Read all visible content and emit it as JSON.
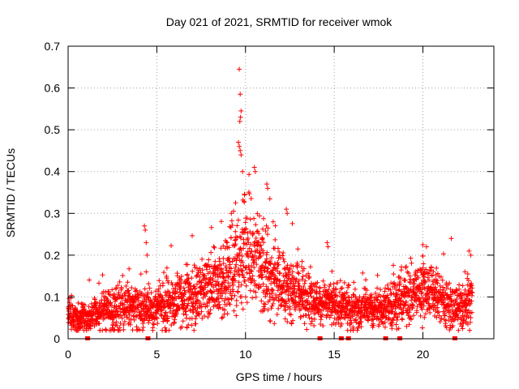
{
  "chart_data": {
    "type": "scatter",
    "title": "Day 021 of 2021, SRMTID for receiver wmok",
    "xlabel": "GPS time / hours",
    "ylabel": "SRMTID / TECUs",
    "xlim": [
      0,
      24
    ],
    "ylim": [
      0,
      0.7
    ],
    "x_ticks": [
      0,
      5,
      10,
      15,
      20
    ],
    "x_tick_labels": [
      "0",
      "5",
      "10",
      "15",
      "20"
    ],
    "y_ticks": [
      0,
      0.1,
      0.2,
      0.3,
      0.4,
      0.5,
      0.6,
      0.7
    ],
    "y_tick_labels": [
      "0",
      "0.1",
      "0.2",
      "0.3",
      "0.4",
      "0.5",
      "0.6",
      "0.7"
    ],
    "grid": true,
    "marker": "plus",
    "series_color": "#ff0000",
    "profile_hours": [
      0,
      0.5,
      1,
      1.5,
      2,
      2.5,
      3,
      3.5,
      4,
      4.5,
      5,
      5.5,
      6,
      6.5,
      7,
      7.5,
      8,
      8.5,
      9,
      9.5,
      10,
      10.5,
      11,
      11.5,
      12,
      12.5,
      13,
      13.5,
      14,
      14.5,
      15,
      15.5,
      16,
      16.5,
      17,
      17.5,
      18,
      18.5,
      19,
      19.5,
      20,
      20.5,
      21,
      21.5,
      22,
      22.5,
      22.8
    ],
    "profile_median": [
      0.06,
      0.05,
      0.05,
      0.06,
      0.07,
      0.07,
      0.07,
      0.08,
      0.07,
      0.07,
      0.08,
      0.08,
      0.09,
      0.09,
      0.1,
      0.11,
      0.12,
      0.13,
      0.15,
      0.18,
      0.22,
      0.2,
      0.17,
      0.14,
      0.13,
      0.12,
      0.11,
      0.1,
      0.09,
      0.09,
      0.08,
      0.08,
      0.07,
      0.07,
      0.07,
      0.07,
      0.08,
      0.09,
      0.1,
      0.11,
      0.12,
      0.11,
      0.09,
      0.08,
      0.07,
      0.08,
      0.1
    ],
    "profile_spread": [
      0.03,
      0.03,
      0.03,
      0.03,
      0.04,
      0.04,
      0.04,
      0.04,
      0.04,
      0.04,
      0.04,
      0.05,
      0.05,
      0.05,
      0.06,
      0.06,
      0.07,
      0.07,
      0.08,
      0.1,
      0.11,
      0.1,
      0.09,
      0.07,
      0.07,
      0.06,
      0.05,
      0.05,
      0.04,
      0.04,
      0.04,
      0.04,
      0.04,
      0.04,
      0.03,
      0.03,
      0.04,
      0.05,
      0.05,
      0.06,
      0.06,
      0.05,
      0.05,
      0.04,
      0.04,
      0.05,
      0.05
    ],
    "notable_points": [
      {
        "x": 4.3,
        "y": 0.27
      },
      {
        "x": 4.35,
        "y": 0.26
      },
      {
        "x": 4.4,
        "y": 0.23
      },
      {
        "x": 4.45,
        "y": 0.2
      },
      {
        "x": 4.4,
        "y": 0.16
      },
      {
        "x": 9.65,
        "y": 0.645
      },
      {
        "x": 9.7,
        "y": 0.585
      },
      {
        "x": 9.75,
        "y": 0.545
      },
      {
        "x": 9.72,
        "y": 0.53
      },
      {
        "x": 9.68,
        "y": 0.52
      },
      {
        "x": 9.6,
        "y": 0.47
      },
      {
        "x": 9.65,
        "y": 0.46
      },
      {
        "x": 9.7,
        "y": 0.45
      },
      {
        "x": 9.75,
        "y": 0.44
      },
      {
        "x": 10.5,
        "y": 0.41
      },
      {
        "x": 10.55,
        "y": 0.4
      },
      {
        "x": 11.2,
        "y": 0.37
      },
      {
        "x": 11.25,
        "y": 0.36
      },
      {
        "x": 12.3,
        "y": 0.31
      },
      {
        "x": 12.35,
        "y": 0.3
      },
      {
        "x": 14.6,
        "y": 0.23
      },
      {
        "x": 14.65,
        "y": 0.22
      },
      {
        "x": 20.0,
        "y": 0.225
      },
      {
        "x": 20.2,
        "y": 0.22
      },
      {
        "x": 21.6,
        "y": 0.24
      },
      {
        "x": 22.6,
        "y": 0.21
      },
      {
        "x": 22.7,
        "y": 0.2
      }
    ],
    "zero_markers_x": [
      1.1,
      4.5,
      14.2,
      15.4,
      15.8,
      17.9,
      18.7,
      21.8
    ]
  }
}
